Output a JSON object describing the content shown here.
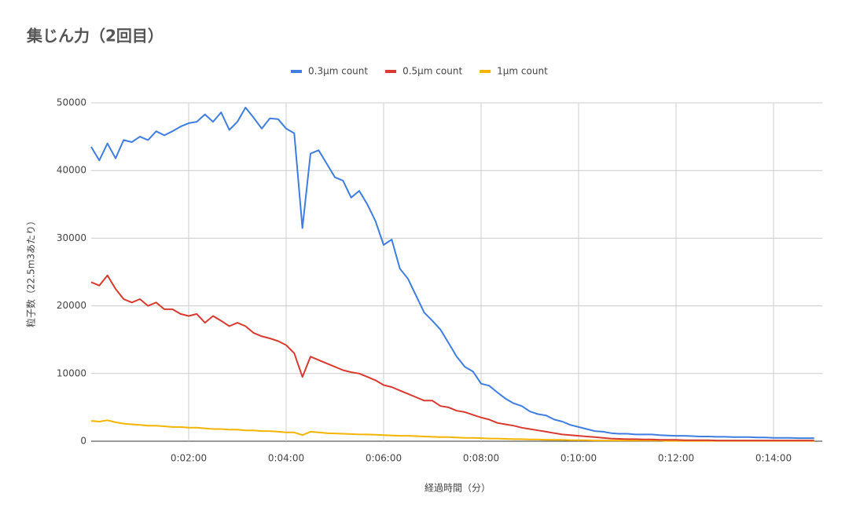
{
  "chart_data": {
    "type": "line",
    "title": "集じん力（2回目）",
    "x_label": "経過時間（分）",
    "y_label": "粒子数（22.5m3あたり）",
    "x": [
      0,
      10,
      20,
      30,
      40,
      50,
      60,
      70,
      80,
      90,
      100,
      110,
      120,
      130,
      140,
      150,
      160,
      170,
      180,
      190,
      200,
      210,
      220,
      230,
      240,
      250,
      260,
      270,
      280,
      290,
      300,
      310,
      320,
      330,
      340,
      350,
      360,
      370,
      380,
      390,
      400,
      410,
      420,
      430,
      440,
      450,
      460,
      470,
      480,
      490,
      500,
      510,
      520,
      530,
      540,
      550,
      560,
      570,
      580,
      590,
      600,
      610,
      620,
      630,
      640,
      650,
      660,
      670,
      680,
      690,
      700,
      710,
      720,
      730,
      740,
      750,
      760,
      770,
      780,
      790,
      800,
      810,
      820,
      830,
      840,
      850,
      860,
      870,
      880,
      890
    ],
    "series": [
      {
        "name": "0.3µm count",
        "color": "#3f7ee0",
        "values": [
          43500,
          41500,
          44000,
          41800,
          44500,
          44200,
          45000,
          44500,
          45800,
          45200,
          45800,
          46500,
          47000,
          47200,
          48300,
          47200,
          48600,
          46000,
          47200,
          49300,
          47800,
          46200,
          47700,
          47600,
          46200,
          45500,
          31500,
          42500,
          43000,
          41000,
          39000,
          38500,
          36000,
          37000,
          35000,
          32500,
          29000,
          29800,
          25500,
          24000,
          21500,
          19000,
          17800,
          16500,
          14500,
          12500,
          11000,
          10300,
          8500,
          8200,
          7200,
          6300,
          5600,
          5200,
          4400,
          4000,
          3800,
          3200,
          2900,
          2400,
          2100,
          1800,
          1500,
          1400,
          1200,
          1100,
          1100,
          1000,
          1000,
          1000,
          900,
          850,
          800,
          800,
          750,
          700,
          700,
          650,
          650,
          600,
          600,
          600,
          550,
          550,
          500,
          500,
          500,
          450,
          450,
          450
        ]
      },
      {
        "name": "0.5µm count",
        "color": "#d93a2f",
        "values": [
          23500,
          23000,
          24500,
          22500,
          21000,
          20500,
          21000,
          20000,
          20500,
          19500,
          19500,
          18800,
          18500,
          18800,
          17500,
          18500,
          17800,
          17000,
          17500,
          17000,
          16000,
          15500,
          15200,
          14800,
          14200,
          13000,
          9500,
          12500,
          12000,
          11500,
          11000,
          10500,
          10200,
          10000,
          9500,
          9000,
          8300,
          8000,
          7500,
          7000,
          6500,
          6000,
          6000,
          5200,
          5000,
          4500,
          4300,
          3900,
          3500,
          3200,
          2700,
          2500,
          2300,
          2000,
          1800,
          1600,
          1400,
          1200,
          1000,
          900,
          800,
          700,
          600,
          500,
          400,
          350,
          300,
          300,
          250,
          250,
          200,
          200,
          200,
          150,
          150,
          150,
          150,
          100,
          100,
          100,
          100,
          100,
          100,
          100,
          100,
          100,
          100,
          100,
          100,
          100
        ]
      },
      {
        "name": "1µm count",
        "color": "#f4b400",
        "values": [
          3000,
          2900,
          3100,
          2800,
          2600,
          2500,
          2400,
          2300,
          2300,
          2200,
          2100,
          2100,
          2000,
          2000,
          1900,
          1800,
          1800,
          1700,
          1700,
          1600,
          1600,
          1500,
          1500,
          1400,
          1300,
          1300,
          900,
          1400,
          1300,
          1200,
          1150,
          1100,
          1050,
          1000,
          1000,
          950,
          900,
          850,
          800,
          800,
          750,
          700,
          650,
          600,
          600,
          550,
          500,
          500,
          450,
          400,
          400,
          350,
          300,
          300,
          250,
          250,
          200,
          200,
          200,
          150,
          150,
          150,
          100,
          100,
          100,
          100,
          100,
          100,
          100,
          100,
          100,
          50,
          50,
          50,
          50,
          50,
          50,
          50,
          50,
          50,
          50,
          50,
          50,
          50,
          50,
          50,
          50,
          50,
          50,
          50
        ]
      }
    ],
    "xlim": [
      0,
      900
    ],
    "xticks": [
      {
        "value": 120,
        "label": "0:02:00"
      },
      {
        "value": 240,
        "label": "0:04:00"
      },
      {
        "value": 360,
        "label": "0:06:00"
      },
      {
        "value": 480,
        "label": "0:08:00"
      },
      {
        "value": 600,
        "label": "0:10:00"
      },
      {
        "value": 720,
        "label": "0:12:00"
      },
      {
        "value": 840,
        "label": "0:14:00"
      }
    ],
    "ylim": [
      0,
      50000
    ],
    "yticks": [
      0,
      10000,
      20000,
      30000,
      40000,
      50000
    ],
    "grid": true,
    "legend": "top"
  }
}
